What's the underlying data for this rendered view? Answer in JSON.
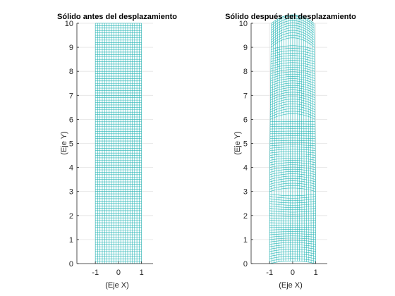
{
  "figure": {
    "background": "#ffffff"
  },
  "chart_data": [
    {
      "type": "mesh",
      "title": "Sólido antes del desplazamiento",
      "xlabel": "(Eje X)",
      "ylabel": "(Eje Y)",
      "xlim": [
        -1.8,
        1.5
      ],
      "ylim": [
        0,
        10
      ],
      "xticks": [
        -1,
        0,
        1
      ],
      "xtick_labels": [
        "-1",
        "0",
        "1"
      ],
      "yticks": [
        0,
        1,
        2,
        3,
        4,
        5,
        6,
        7,
        8,
        9,
        10
      ],
      "ytick_labels": [
        "0",
        "1",
        "2",
        "3",
        "4",
        "5",
        "6",
        "7",
        "8",
        "9",
        "10"
      ],
      "grid": true,
      "mesh_color": "#2bb7b7",
      "mesh": {
        "x_range": [
          -1,
          1
        ],
        "y_range": [
          0,
          10
        ],
        "x_divisions": 20,
        "y_divisions": 100,
        "deformed": false
      }
    },
    {
      "type": "mesh",
      "title": "Sólido después del desplazamiento",
      "xlabel": "(Eje X)",
      "ylabel": "(Eje Y)",
      "xlim": [
        -1.8,
        1.5
      ],
      "ylim": [
        0,
        10
      ],
      "xticks": [
        -1,
        0,
        1
      ],
      "xtick_labels": [
        "-1",
        "0",
        "1"
      ],
      "yticks": [
        0,
        1,
        2,
        3,
        4,
        5,
        6,
        7,
        8,
        9,
        10
      ],
      "ytick_labels": [
        "0",
        "1",
        "2",
        "3",
        "4",
        "5",
        "6",
        "7",
        "8",
        "9",
        "10"
      ],
      "grid": true,
      "mesh_color": "#2bb7b7",
      "mesh": {
        "x_range": [
          -1,
          1
        ],
        "y_range": [
          0,
          10
        ],
        "x_divisions": 20,
        "y_divisions": 100,
        "deformed": true,
        "top_bulge": 0.35
      }
    }
  ]
}
